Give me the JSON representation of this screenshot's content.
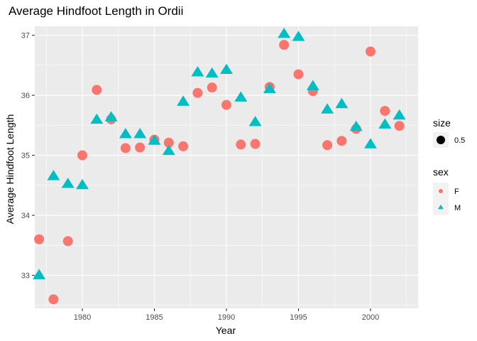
{
  "chart_data": {
    "type": "scatter",
    "title": "Average Hindfoot Length in Ordii",
    "xlabel": "Year",
    "ylabel": "Average Hindfoot Length",
    "xlim": [
      1976.7,
      2003.3
    ],
    "ylim": [
      32.45,
      37.15
    ],
    "xticks": [
      1980,
      1985,
      1990,
      1995,
      2000
    ],
    "yticks": [
      33,
      34,
      35,
      36,
      37
    ],
    "grid": true,
    "legend_position": "right",
    "size_legend": {
      "title": "size",
      "label": "0.5"
    },
    "sex_legend": {
      "title": "sex"
    },
    "series": [
      {
        "name": "F",
        "marker": "circle",
        "color": "#F8766D",
        "points": [
          [
            1977,
            33.6
          ],
          [
            1978,
            32.6
          ],
          [
            1979,
            33.57
          ],
          [
            1980,
            35.0
          ],
          [
            1981,
            36.09
          ],
          [
            1982,
            35.6
          ],
          [
            1983,
            35.12
          ],
          [
            1984,
            35.13
          ],
          [
            1985,
            35.26
          ],
          [
            1986,
            35.21
          ],
          [
            1987,
            35.15
          ],
          [
            1988,
            36.04
          ],
          [
            1989,
            36.13
          ],
          [
            1990,
            35.84
          ],
          [
            1991,
            35.18
          ],
          [
            1992,
            35.19
          ],
          [
            1993,
            36.14
          ],
          [
            1994,
            36.84
          ],
          [
            1995,
            36.35
          ],
          [
            1996,
            36.07
          ],
          [
            1997,
            35.17
          ],
          [
            1998,
            35.24
          ],
          [
            1999,
            35.44
          ],
          [
            2000,
            36.73
          ],
          [
            2001,
            35.74
          ],
          [
            2002,
            35.49
          ]
        ]
      },
      {
        "name": "M",
        "marker": "triangle",
        "color": "#00BFC4",
        "points": [
          [
            1977,
            33.0
          ],
          [
            1978,
            34.65
          ],
          [
            1979,
            34.52
          ],
          [
            1980,
            34.5
          ],
          [
            1981,
            35.59
          ],
          [
            1982,
            35.63
          ],
          [
            1983,
            35.35
          ],
          [
            1984,
            35.35
          ],
          [
            1985,
            35.24
          ],
          [
            1986,
            35.07
          ],
          [
            1987,
            35.89
          ],
          [
            1988,
            36.38
          ],
          [
            1989,
            36.36
          ],
          [
            1990,
            36.42
          ],
          [
            1991,
            35.96
          ],
          [
            1992,
            35.55
          ],
          [
            1993,
            36.1
          ],
          [
            1994,
            37.02
          ],
          [
            1995,
            36.97
          ],
          [
            1996,
            36.15
          ],
          [
            1997,
            35.76
          ],
          [
            1998,
            35.85
          ],
          [
            1999,
            35.47
          ],
          [
            2000,
            35.18
          ],
          [
            2001,
            35.51
          ],
          [
            2002,
            35.66
          ]
        ]
      }
    ]
  }
}
